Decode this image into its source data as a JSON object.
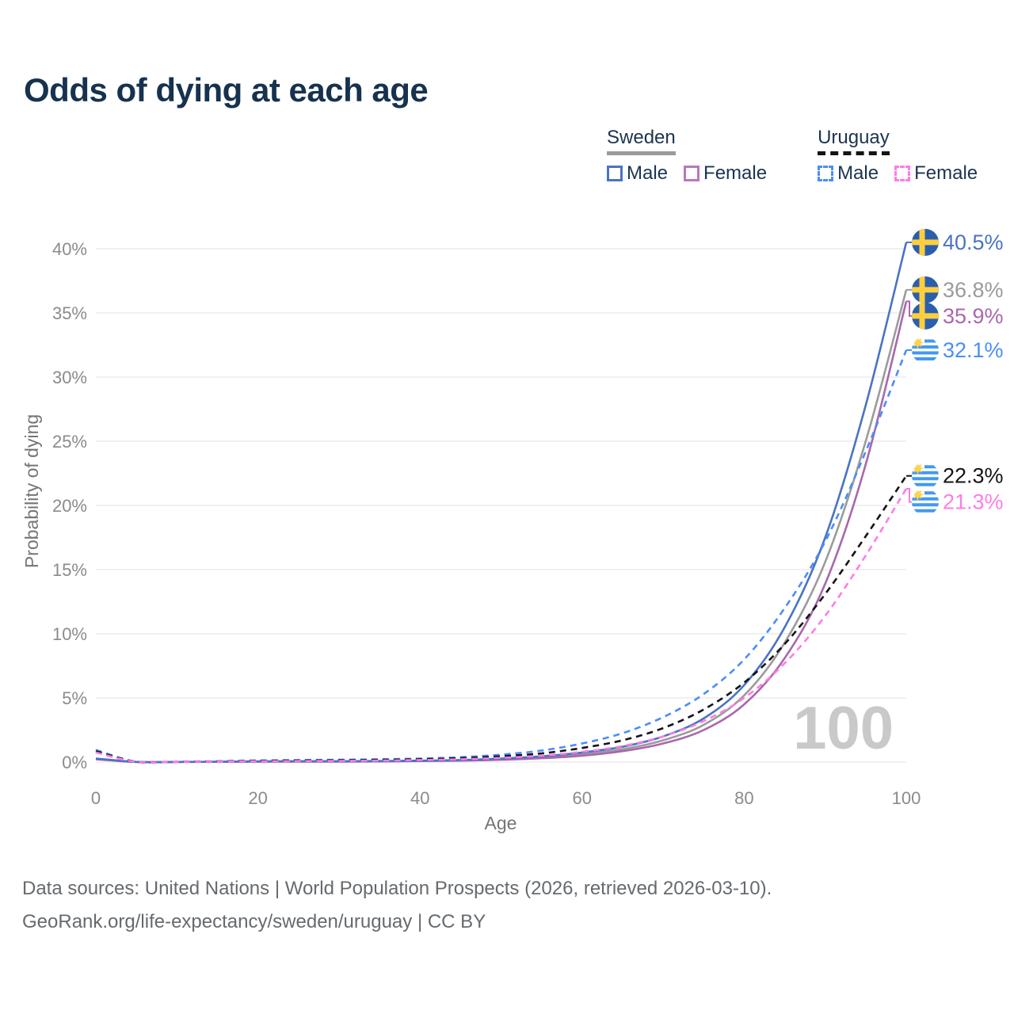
{
  "title": "Odds of dying at each age",
  "legend": {
    "groups": [
      {
        "label": "Sweden",
        "line_style": "solid",
        "line_color": "#9b9b9b",
        "items": [
          {
            "label": "Male",
            "color": "#4a73c4",
            "dashed": false
          },
          {
            "label": "Female",
            "color": "#bb76bc",
            "dashed": false
          }
        ]
      },
      {
        "label": "Uruguay",
        "line_style": "dashed",
        "line_color": "#141414",
        "items": [
          {
            "label": "Male",
            "color": "#4b8df8",
            "dashed": true
          },
          {
            "label": "Female",
            "color": "#ff7ce6",
            "dashed": true
          }
        ]
      }
    ]
  },
  "chart_data": {
    "type": "line",
    "title": "Odds of dying at each age",
    "xlabel": "Age",
    "ylabel": "Probability of dying",
    "xlim": [
      0,
      100
    ],
    "ylim": [
      0,
      42
    ],
    "grid": "horizontal-only",
    "legend_position": "top-right",
    "watermark": "100",
    "x": [
      0,
      5,
      10,
      15,
      20,
      25,
      30,
      35,
      40,
      45,
      50,
      55,
      60,
      65,
      70,
      75,
      80,
      85,
      90,
      95,
      100
    ],
    "x_ticks": [
      {
        "v": 0,
        "label": "0"
      },
      {
        "v": 20,
        "label": "20"
      },
      {
        "v": 40,
        "label": "40"
      },
      {
        "v": 60,
        "label": "60"
      },
      {
        "v": 80,
        "label": "80"
      },
      {
        "v": 100,
        "label": "100"
      }
    ],
    "y_ticks": [
      {
        "v": 0,
        "label": "0%"
      },
      {
        "v": 5,
        "label": "5%"
      },
      {
        "v": 10,
        "label": "10%"
      },
      {
        "v": 15,
        "label": "15%"
      },
      {
        "v": 20,
        "label": "20%"
      },
      {
        "v": 25,
        "label": "25%"
      },
      {
        "v": 30,
        "label": "30%"
      },
      {
        "v": 35,
        "label": "35%"
      },
      {
        "v": 40,
        "label": "40%"
      }
    ],
    "series": [
      {
        "name": "Sweden Male",
        "country": "Sweden",
        "sex": "Male",
        "color": "#4a73c4",
        "dashed": false,
        "flag": "sweden",
        "end_label": "40.5%",
        "end_value": 40.5,
        "values": [
          0.28,
          0.01,
          0.01,
          0.03,
          0.06,
          0.07,
          0.07,
          0.08,
          0.11,
          0.16,
          0.27,
          0.45,
          0.75,
          1.2,
          2.0,
          3.4,
          6.0,
          10.5,
          17.5,
          27.8,
          40.5
        ]
      },
      {
        "name": "Sweden Both sexes",
        "country": "Sweden",
        "sex": "Both",
        "color": "#9b9b9b",
        "dashed": false,
        "flag": "sweden",
        "end_label": "36.8%",
        "end_value": 36.8,
        "values": [
          0.25,
          0.01,
          0.01,
          0.02,
          0.04,
          0.05,
          0.05,
          0.06,
          0.09,
          0.13,
          0.22,
          0.38,
          0.62,
          1.0,
          1.7,
          2.9,
          5.2,
          9.3,
          15.6,
          25.0,
          36.8
        ]
      },
      {
        "name": "Sweden Female",
        "country": "Sweden",
        "sex": "Female",
        "color": "#a967ad",
        "dashed": false,
        "flag": "sweden",
        "end_label": "35.9%",
        "end_value": 35.9,
        "values": [
          0.22,
          0.01,
          0.01,
          0.02,
          0.03,
          0.03,
          0.04,
          0.05,
          0.08,
          0.11,
          0.18,
          0.3,
          0.5,
          0.85,
          1.45,
          2.5,
          4.5,
          8.1,
          13.9,
          23.2,
          35.9
        ]
      },
      {
        "name": "Uruguay Male",
        "country": "Uruguay",
        "sex": "Male",
        "color": "#4b8df8",
        "dashed": true,
        "flag": "uruguay",
        "end_label": "32.1%",
        "end_value": 32.1,
        "values": [
          0.95,
          0.02,
          0.03,
          0.07,
          0.13,
          0.16,
          0.18,
          0.22,
          0.28,
          0.38,
          0.58,
          0.9,
          1.45,
          2.25,
          3.5,
          5.3,
          8.0,
          12.0,
          17.2,
          24.2,
          32.1
        ]
      },
      {
        "name": "Uruguay Both sexes",
        "country": "Uruguay",
        "sex": "Both",
        "color": "#141414",
        "dashed": true,
        "flag": "uruguay",
        "end_label": "22.3%",
        "end_value": 22.3,
        "values": [
          0.85,
          0.02,
          0.02,
          0.05,
          0.1,
          0.12,
          0.14,
          0.17,
          0.22,
          0.3,
          0.45,
          0.68,
          1.1,
          1.7,
          2.65,
          4.1,
          6.2,
          9.2,
          13.1,
          17.6,
          22.3
        ]
      },
      {
        "name": "Uruguay Female",
        "country": "Uruguay",
        "sex": "Female",
        "color": "#ff7ce6",
        "dashed": true,
        "flag": "uruguay",
        "end_label": "21.3%",
        "end_value": 21.3,
        "values": [
          0.75,
          0.01,
          0.02,
          0.04,
          0.07,
          0.08,
          0.09,
          0.12,
          0.16,
          0.22,
          0.33,
          0.5,
          0.8,
          1.25,
          2.0,
          3.2,
          5.0,
          7.7,
          11.4,
          16.1,
          21.3
        ]
      }
    ]
  },
  "footer": {
    "line1": "Data sources: United Nations | World Population Prospects (2026, retrieved 2026-03-10).",
    "line2": "GeoRank.org/life-expectancy/sweden/uruguay | CC BY"
  }
}
